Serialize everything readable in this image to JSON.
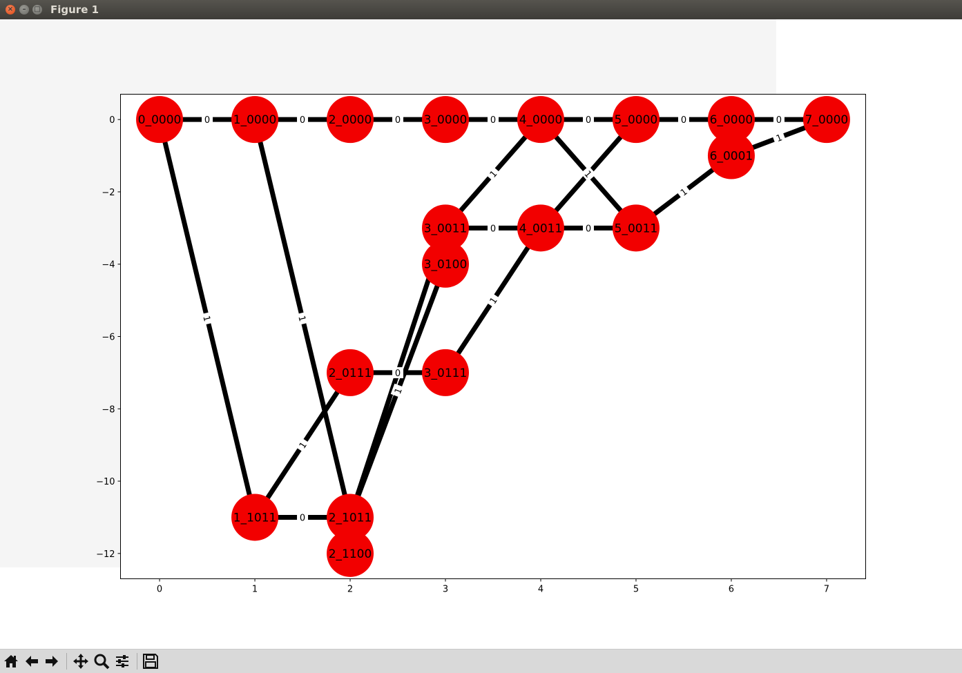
{
  "window": {
    "title": "Figure 1"
  },
  "toolbar": {
    "buttons": [
      {
        "name": "home-icon"
      },
      {
        "name": "back-arrow-icon"
      },
      {
        "name": "forward-arrow-icon"
      },
      {
        "name": "pan-icon"
      },
      {
        "name": "zoom-icon"
      },
      {
        "name": "configure-subplots-icon"
      },
      {
        "name": "save-icon"
      }
    ]
  },
  "colors": {
    "node": "#f20000",
    "edge": "#000000",
    "figure_bg": "#f5f5f5",
    "axes_bg": "#ffffff"
  },
  "chart_data": {
    "type": "scatter",
    "title": "",
    "xlabel": "",
    "ylabel": "",
    "xlim": [
      -0.41,
      7.41
    ],
    "ylim": [
      -12.7,
      0.7
    ],
    "xticks": [
      0,
      1,
      2,
      3,
      4,
      5,
      6,
      7
    ],
    "yticks": [
      0,
      -2,
      -4,
      -6,
      -8,
      -10,
      -12
    ],
    "grid": false,
    "nodes": [
      {
        "label": "0_0000",
        "x": 0,
        "y": 0
      },
      {
        "label": "1_0000",
        "x": 1,
        "y": 0
      },
      {
        "label": "2_0000",
        "x": 2,
        "y": 0
      },
      {
        "label": "3_0000",
        "x": 3,
        "y": 0
      },
      {
        "label": "4_0000",
        "x": 4,
        "y": 0
      },
      {
        "label": "5_0000",
        "x": 5,
        "y": 0
      },
      {
        "label": "6_0000",
        "x": 6,
        "y": 0
      },
      {
        "label": "7_0000",
        "x": 7,
        "y": 0
      },
      {
        "label": "6_0001",
        "x": 6,
        "y": -1
      },
      {
        "label": "3_0011",
        "x": 3,
        "y": -3
      },
      {
        "label": "4_0011",
        "x": 4,
        "y": -3
      },
      {
        "label": "5_0011",
        "x": 5,
        "y": -3
      },
      {
        "label": "3_0100",
        "x": 3,
        "y": -4
      },
      {
        "label": "2_0111",
        "x": 2,
        "y": -7
      },
      {
        "label": "3_0111",
        "x": 3,
        "y": -7
      },
      {
        "label": "1_1011",
        "x": 1,
        "y": -11
      },
      {
        "label": "2_1011",
        "x": 2,
        "y": -11
      },
      {
        "label": "2_1100",
        "x": 2,
        "y": -12
      }
    ],
    "edges": [
      {
        "from": "0_0000",
        "to": "1_0000",
        "label": "0"
      },
      {
        "from": "1_0000",
        "to": "2_0000",
        "label": "0"
      },
      {
        "from": "2_0000",
        "to": "3_0000",
        "label": "0"
      },
      {
        "from": "3_0000",
        "to": "4_0000",
        "label": "0"
      },
      {
        "from": "4_0000",
        "to": "5_0000",
        "label": "0"
      },
      {
        "from": "5_0000",
        "to": "6_0000",
        "label": "0"
      },
      {
        "from": "6_0000",
        "to": "7_0000",
        "label": "0"
      },
      {
        "from": "0_0000",
        "to": "1_1011",
        "label": "1"
      },
      {
        "from": "1_0000",
        "to": "2_1011",
        "label": "1"
      },
      {
        "from": "1_1011",
        "to": "2_1011",
        "label": "0"
      },
      {
        "from": "1_1011",
        "to": "2_0111",
        "label": "1"
      },
      {
        "from": "2_0111",
        "to": "3_0111",
        "label": "0"
      },
      {
        "from": "2_1011",
        "to": "3_0011",
        "label": ""
      },
      {
        "from": "2_1011",
        "to": "3_0100",
        "label": "1"
      },
      {
        "from": "3_0011",
        "to": "4_0000",
        "label": "1"
      },
      {
        "from": "3_0011",
        "to": "4_0011",
        "label": "0"
      },
      {
        "from": "3_0111",
        "to": "4_0011",
        "label": "1"
      },
      {
        "from": "4_0011",
        "to": "5_0011",
        "label": "0"
      },
      {
        "from": "4_0011",
        "to": "5_0000",
        "label": ""
      },
      {
        "from": "4_0000",
        "to": "5_0011",
        "label": "1"
      },
      {
        "from": "5_0011",
        "to": "6_0001",
        "label": "1"
      },
      {
        "from": "6_0001",
        "to": "7_0000",
        "label": "1"
      }
    ]
  }
}
